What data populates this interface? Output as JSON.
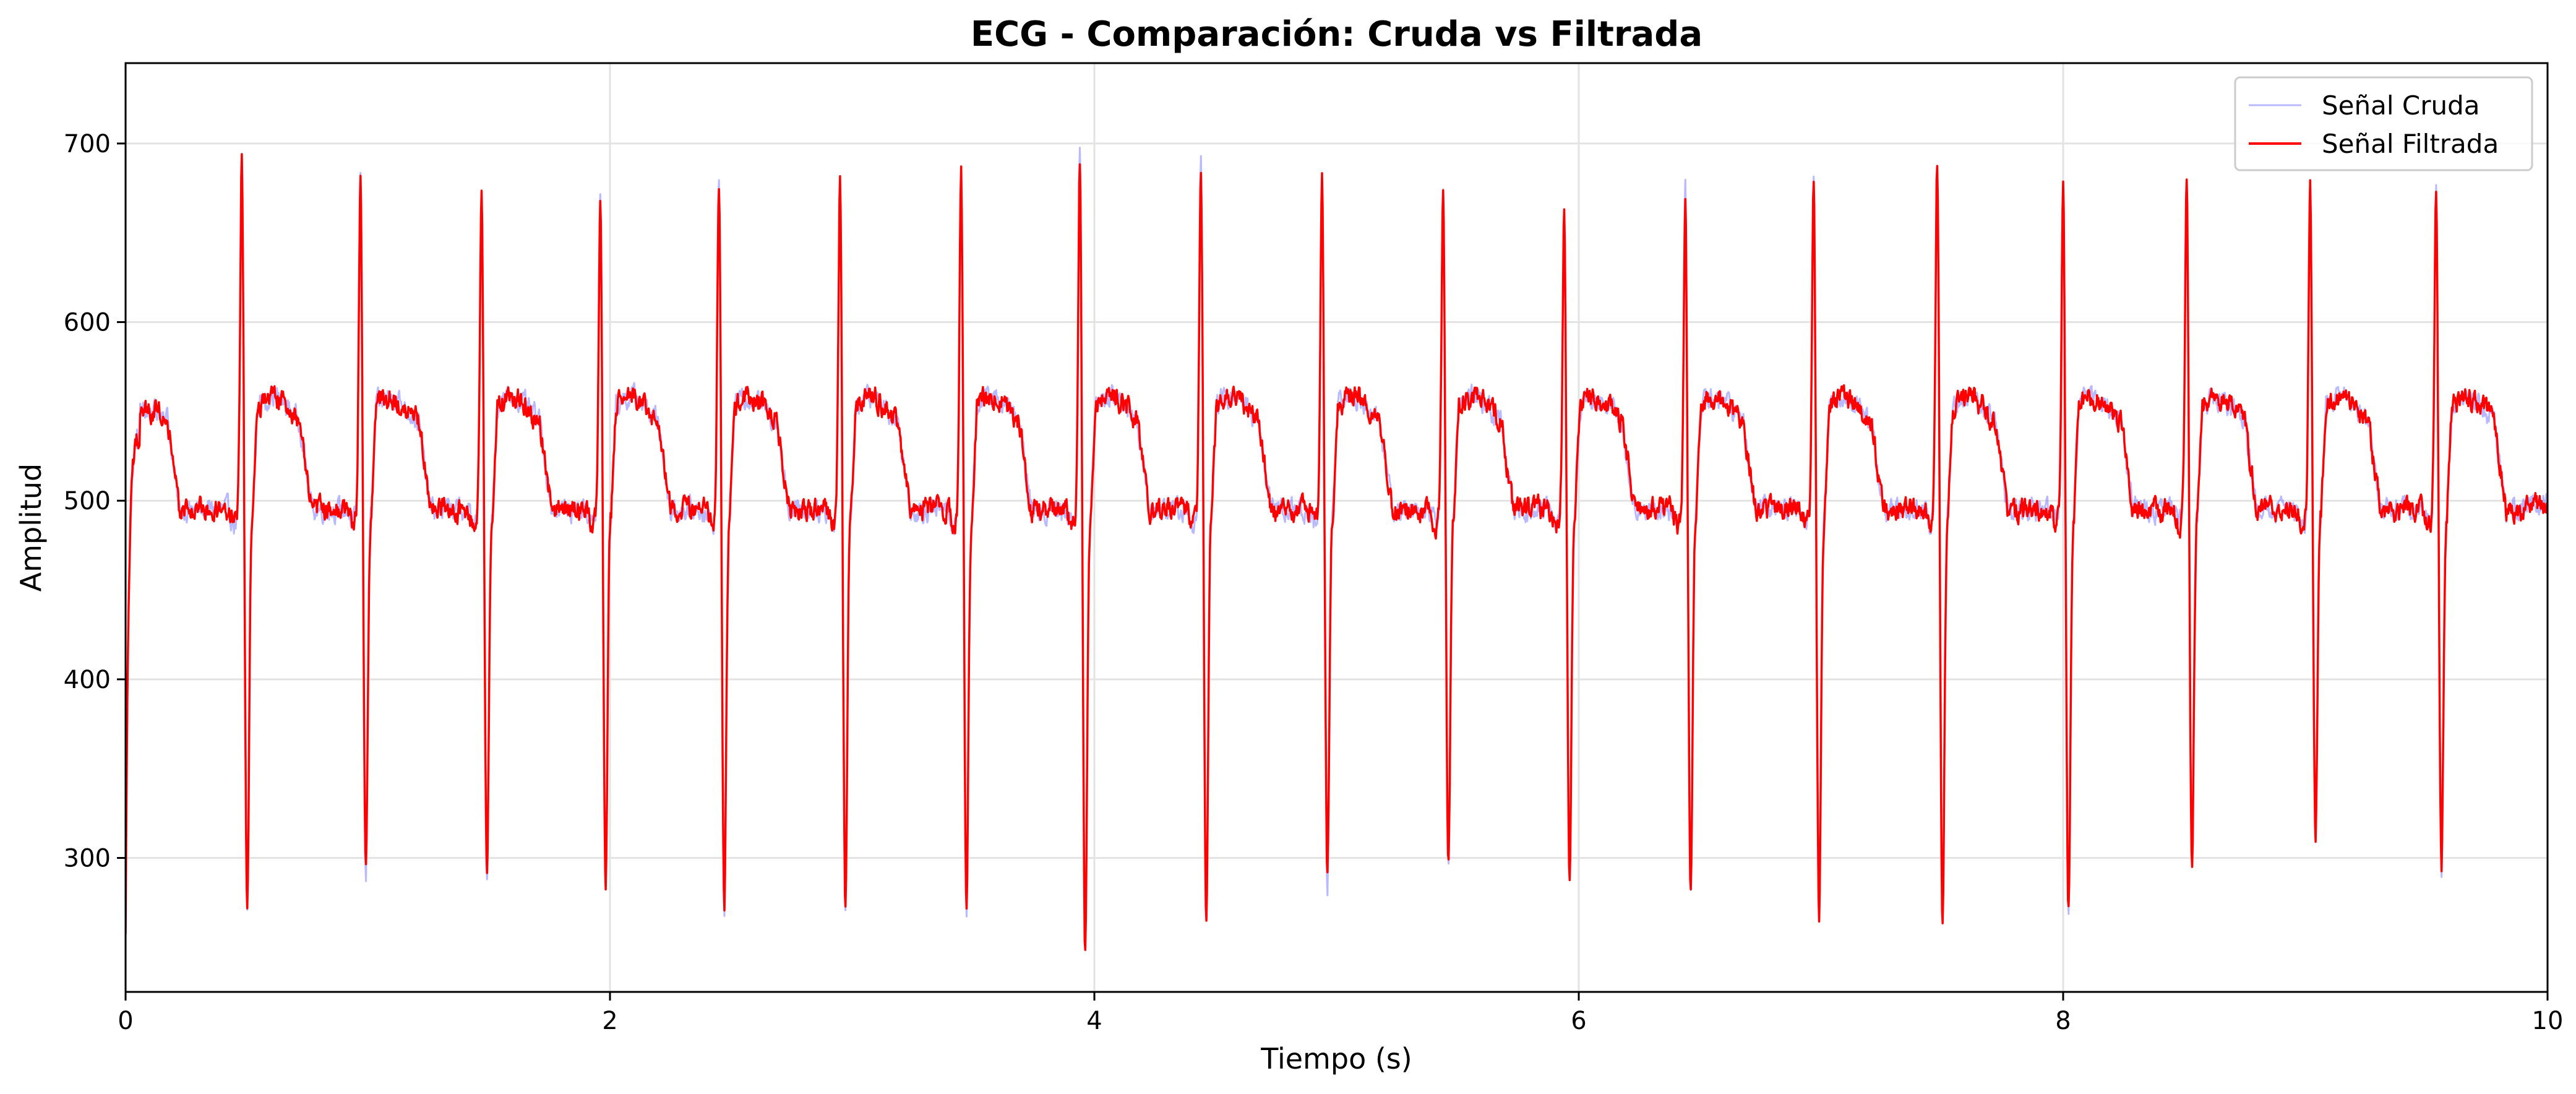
{
  "chart_data": {
    "type": "line",
    "title": "ECG - Comparación: Cruda vs Filtrada",
    "xlabel": "Tiempo (s)",
    "ylabel": "Amplitud",
    "xlim": [
      0,
      10
    ],
    "ylim": [
      225,
      745
    ],
    "x_ticks": [
      0,
      2,
      4,
      6,
      8,
      10
    ],
    "x_tick_labels": [
      "0",
      "2",
      "4",
      "6",
      "8",
      "10"
    ],
    "y_ticks": [
      300,
      400,
      500,
      600,
      700
    ],
    "y_tick_labels": [
      "300",
      "400",
      "500",
      "600",
      "700"
    ],
    "grid": true,
    "legend_position": "top-right",
    "series": [
      {
        "name": "Señal Cruda",
        "color": "#8080ff",
        "style": "thin translucent line",
        "beats": [
          {
            "r_time": 0.48,
            "r_peak": 693,
            "s_min": 270
          },
          {
            "r_time": 0.97,
            "r_peak": 688,
            "s_min": 289
          },
          {
            "r_time": 1.47,
            "r_peak": 673,
            "s_min": 288
          },
          {
            "r_time": 1.96,
            "r_peak": 674,
            "s_min": 288
          },
          {
            "r_time": 2.45,
            "r_peak": 685,
            "s_min": 271
          },
          {
            "r_time": 2.95,
            "r_peak": 684,
            "s_min": 272
          },
          {
            "r_time": 3.45,
            "r_peak": 687,
            "s_min": 267
          },
          {
            "r_time": 3.94,
            "r_peak": 697,
            "s_min": 250
          },
          {
            "r_time": 4.44,
            "r_peak": 691,
            "s_min": 266
          },
          {
            "r_time": 4.94,
            "r_peak": 685,
            "s_min": 283
          },
          {
            "r_time": 5.44,
            "r_peak": 675,
            "s_min": 295
          },
          {
            "r_time": 5.94,
            "r_peak": 670,
            "s_min": 293
          },
          {
            "r_time": 6.44,
            "r_peak": 679,
            "s_min": 282
          },
          {
            "r_time": 6.97,
            "r_peak": 688,
            "s_min": 267
          },
          {
            "r_time": 7.48,
            "r_peak": 689,
            "s_min": 260
          },
          {
            "r_time": 8.0,
            "r_peak": 686,
            "s_min": 269
          },
          {
            "r_time": 8.51,
            "r_peak": 685,
            "s_min": 298
          },
          {
            "r_time": 9.02,
            "r_peak": 679,
            "s_min": 314
          },
          {
            "r_time": 9.54,
            "r_peak": 682,
            "s_min": 294
          }
        ],
        "baseline": 495,
        "t_wave_peak": 550,
        "start_value": 255,
        "end_value": 503
      },
      {
        "name": "Señal Filtrada",
        "color": "#ff0000",
        "style": "line",
        "beats": [
          {
            "r_time": 0.48,
            "r_peak": 693,
            "s_min": 270
          },
          {
            "r_time": 0.97,
            "r_peak": 687,
            "s_min": 289
          },
          {
            "r_time": 1.47,
            "r_peak": 672,
            "s_min": 288
          },
          {
            "r_time": 1.96,
            "r_peak": 673,
            "s_min": 288
          },
          {
            "r_time": 2.45,
            "r_peak": 682,
            "s_min": 273
          },
          {
            "r_time": 2.95,
            "r_peak": 683,
            "s_min": 272
          },
          {
            "r_time": 3.45,
            "r_peak": 686,
            "s_min": 267
          },
          {
            "r_time": 3.94,
            "r_peak": 697,
            "s_min": 250
          },
          {
            "r_time": 4.44,
            "r_peak": 688,
            "s_min": 266
          },
          {
            "r_time": 4.94,
            "r_peak": 683,
            "s_min": 283
          },
          {
            "r_time": 5.44,
            "r_peak": 674,
            "s_min": 295
          },
          {
            "r_time": 5.94,
            "r_peak": 667,
            "s_min": 293
          },
          {
            "r_time": 6.44,
            "r_peak": 676,
            "s_min": 283
          },
          {
            "r_time": 6.97,
            "r_peak": 687,
            "s_min": 268
          },
          {
            "r_time": 7.48,
            "r_peak": 689,
            "s_min": 260
          },
          {
            "r_time": 8.0,
            "r_peak": 685,
            "s_min": 269
          },
          {
            "r_time": 8.51,
            "r_peak": 684,
            "s_min": 298
          },
          {
            "r_time": 9.02,
            "r_peak": 678,
            "s_min": 314
          },
          {
            "r_time": 9.54,
            "r_peak": 679,
            "s_min": 294
          }
        ],
        "baseline": 495,
        "t_wave_peak": 550,
        "start_value": 255,
        "end_value": 503
      }
    ]
  }
}
